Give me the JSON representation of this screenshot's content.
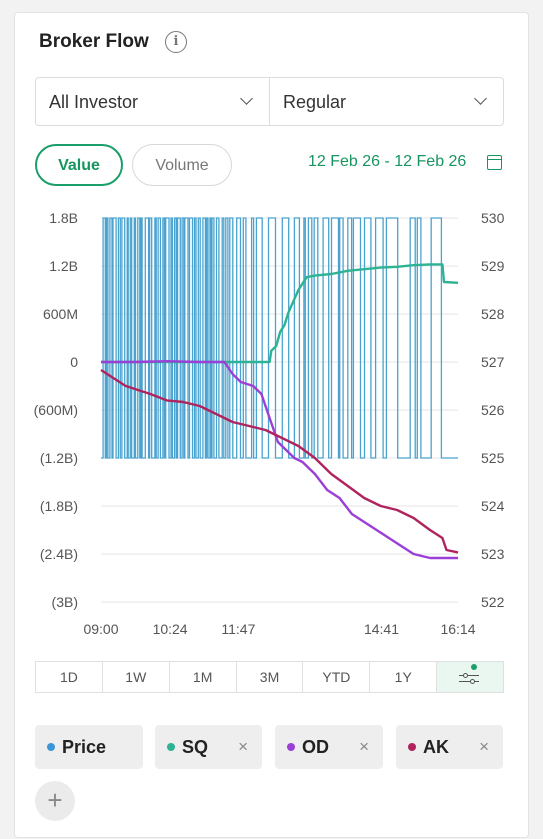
{
  "header": {
    "title": "Broker Flow",
    "info_icon": "info-icon"
  },
  "filters": {
    "investor": "All Investor",
    "market": "Regular"
  },
  "toggle": {
    "value_label": "Value",
    "volume_label": "Volume",
    "active": "Value"
  },
  "date_range": {
    "label": "12 Feb 26 - 12 Feb 26",
    "icon": "calendar-icon"
  },
  "chart_data": {
    "type": "line",
    "left_axis_ticks": [
      "1.8B",
      "1.2B",
      "600M",
      "0",
      "(600M)",
      "(1.2B)",
      "(1.8B)",
      "(2.4B)",
      "(3B)"
    ],
    "right_axis_ticks": [
      "530",
      "529",
      "528",
      "527",
      "526",
      "525",
      "524",
      "523",
      "522"
    ],
    "x_ticks": [
      "09:00",
      "10:24",
      "11:47",
      "14:41",
      "16:14"
    ],
    "left_ylim": [
      -3000000000,
      1800000000
    ],
    "right_ylim": [
      522,
      530
    ],
    "grid": true,
    "series": [
      {
        "name": "SQ",
        "axis": "left",
        "color": "#2db394",
        "points": [
          [
            "09:00",
            0
          ],
          [
            "10:30",
            0
          ],
          [
            "12:00",
            0
          ],
          [
            "12:25",
            0
          ],
          [
            "12:27",
            140000000
          ],
          [
            "12:33",
            200000000
          ],
          [
            "12:38",
            380000000
          ],
          [
            "12:43",
            460000000
          ],
          [
            "12:48",
            620000000
          ],
          [
            "12:53",
            740000000
          ],
          [
            "13:00",
            900000000
          ],
          [
            "13:05",
            980000000
          ],
          [
            "13:10",
            1060000000
          ],
          [
            "13:20",
            1080000000
          ],
          [
            "13:40",
            1100000000
          ],
          [
            "14:00",
            1140000000
          ],
          [
            "14:20",
            1160000000
          ],
          [
            "14:40",
            1180000000
          ],
          [
            "15:00",
            1190000000
          ],
          [
            "15:20",
            1210000000
          ],
          [
            "15:40",
            1220000000
          ],
          [
            "15:55",
            1220000000
          ],
          [
            "15:57",
            1000000000
          ],
          [
            "16:14",
            990000000
          ]
        ]
      },
      {
        "name": "OD",
        "axis": "left",
        "color": "#9b3fd6",
        "points": [
          [
            "09:00",
            0
          ],
          [
            "09:40",
            0
          ],
          [
            "10:20",
            10000000
          ],
          [
            "11:00",
            0
          ],
          [
            "11:30",
            0
          ],
          [
            "11:40",
            -150000000
          ],
          [
            "11:50",
            -250000000
          ],
          [
            "12:05",
            -300000000
          ],
          [
            "12:15",
            -400000000
          ],
          [
            "12:25",
            -700000000
          ],
          [
            "12:35",
            -1000000000
          ],
          [
            "12:45",
            -1100000000
          ],
          [
            "12:55",
            -1200000000
          ],
          [
            "13:05",
            -1250000000
          ],
          [
            "13:20",
            -1400000000
          ],
          [
            "13:35",
            -1600000000
          ],
          [
            "13:50",
            -1700000000
          ],
          [
            "14:05",
            -1900000000
          ],
          [
            "14:20",
            -2000000000
          ],
          [
            "14:35",
            -2100000000
          ],
          [
            "14:50",
            -2200000000
          ],
          [
            "15:05",
            -2300000000
          ],
          [
            "15:20",
            -2400000000
          ],
          [
            "15:40",
            -2450000000
          ],
          [
            "16:14",
            -2450000000
          ]
        ]
      },
      {
        "name": "AK",
        "axis": "left",
        "color": "#b0245e",
        "points": [
          [
            "09:00",
            -100000000
          ],
          [
            "09:15",
            -200000000
          ],
          [
            "09:30",
            -300000000
          ],
          [
            "09:45",
            -350000000
          ],
          [
            "10:00",
            -400000000
          ],
          [
            "10:20",
            -480000000
          ],
          [
            "10:40",
            -500000000
          ],
          [
            "11:00",
            -550000000
          ],
          [
            "11:20",
            -650000000
          ],
          [
            "11:40",
            -750000000
          ],
          [
            "12:00",
            -800000000
          ],
          [
            "12:20",
            -850000000
          ],
          [
            "12:40",
            -950000000
          ],
          [
            "13:00",
            -1050000000
          ],
          [
            "13:20",
            -1200000000
          ],
          [
            "13:40",
            -1400000000
          ],
          [
            "14:00",
            -1550000000
          ],
          [
            "14:20",
            -1700000000
          ],
          [
            "14:40",
            -1800000000
          ],
          [
            "15:00",
            -1850000000
          ],
          [
            "15:20",
            -1950000000
          ],
          [
            "15:40",
            -2100000000
          ],
          [
            "15:55",
            -2200000000
          ],
          [
            "16:00",
            -2350000000
          ],
          [
            "16:14",
            -2380000000
          ]
        ]
      },
      {
        "name": "Price",
        "axis": "right",
        "color": "#4aa3cf",
        "pattern": "alternating between 525 and 530 throughout the session",
        "min": 525,
        "max": 530
      }
    ]
  },
  "periods": [
    "1D",
    "1W",
    "1M",
    "3M",
    "YTD",
    "1Y"
  ],
  "active_period_icon": "sliders-icon",
  "legend_chips": [
    {
      "label": "Price",
      "color": "#3c95d6",
      "removable": false
    },
    {
      "label": "SQ",
      "color": "#2db394",
      "removable": true
    },
    {
      "label": "OD",
      "color": "#9b3fd6",
      "removable": true
    },
    {
      "label": "AK",
      "color": "#b0245e",
      "removable": true
    }
  ],
  "remove_symbol": "×",
  "add_symbol": "+"
}
